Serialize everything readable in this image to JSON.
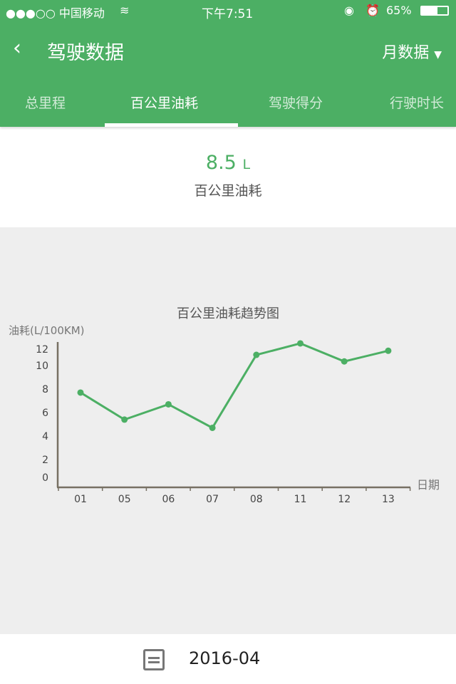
{
  "status": {
    "carrier": "●●●○○ 中国移动",
    "wifi": "wifi-icon",
    "time": "下午7:51",
    "battery": "65%"
  },
  "nav": {
    "title": "驾驶数据",
    "period": "月数据"
  },
  "tabs": [
    {
      "label": "总里程"
    },
    {
      "label": "百公里油耗",
      "active": true
    },
    {
      "label": "驾驶得分"
    },
    {
      "label": "行驶时长"
    }
  ],
  "summary": {
    "value": "8.5",
    "unit": "L",
    "label": "百公里油耗"
  },
  "chart_data": {
    "type": "line",
    "title": "百公里油耗趋势图",
    "ylabel": "油耗(L/100KM)",
    "xlabel": "日期",
    "categories": [
      "01",
      "05",
      "06",
      "07",
      "08",
      "11",
      "12",
      "13"
    ],
    "values": [
      7.7,
      5.4,
      6.7,
      4.7,
      11.3,
      12.7,
      10.5,
      11.8
    ],
    "yticks": [
      0,
      2,
      4,
      6,
      8,
      10,
      12
    ],
    "color": "#4caf64",
    "grid": false
  },
  "footer": {
    "date": "2016-04"
  }
}
